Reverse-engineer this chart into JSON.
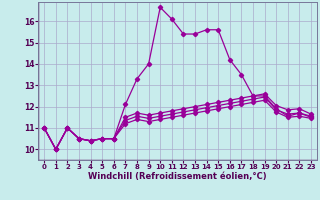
{
  "xlabel": "Windchill (Refroidissement éolien,°C)",
  "xlim": [
    -0.5,
    23.5
  ],
  "ylim": [
    9.5,
    16.9
  ],
  "yticks": [
    10,
    11,
    12,
    13,
    14,
    15,
    16
  ],
  "xticks": [
    0,
    1,
    2,
    3,
    4,
    5,
    6,
    7,
    8,
    9,
    10,
    11,
    12,
    13,
    14,
    15,
    16,
    17,
    18,
    19,
    20,
    21,
    22,
    23
  ],
  "background_color": "#c8ecec",
  "grid_color": "#aaaacc",
  "line_color": "#990099",
  "line_main": [
    11.0,
    10.0,
    11.0,
    10.5,
    10.4,
    10.5,
    10.5,
    12.1,
    13.3,
    14.0,
    16.65,
    16.1,
    15.4,
    15.4,
    15.6,
    15.6,
    14.2,
    13.5,
    12.5,
    12.5,
    11.9,
    11.55,
    11.7,
    11.5
  ],
  "line_flat1": [
    11.0,
    10.0,
    11.0,
    10.5,
    10.4,
    10.5,
    10.5,
    11.35,
    11.55,
    11.45,
    11.55,
    11.65,
    11.75,
    11.85,
    11.95,
    12.05,
    12.15,
    12.25,
    12.35,
    12.45,
    11.85,
    11.65,
    11.7,
    11.55
  ],
  "line_flat2": [
    11.0,
    10.0,
    11.0,
    10.5,
    10.4,
    10.5,
    10.5,
    11.5,
    11.7,
    11.6,
    11.7,
    11.8,
    11.9,
    12.0,
    12.1,
    12.2,
    12.3,
    12.4,
    12.5,
    12.6,
    12.05,
    11.85,
    11.9,
    11.65
  ],
  "line_flat3": [
    11.0,
    10.0,
    11.0,
    10.5,
    10.4,
    10.5,
    10.5,
    11.2,
    11.4,
    11.3,
    11.4,
    11.5,
    11.6,
    11.7,
    11.8,
    11.9,
    12.0,
    12.1,
    12.2,
    12.3,
    11.75,
    11.5,
    11.55,
    11.45
  ]
}
